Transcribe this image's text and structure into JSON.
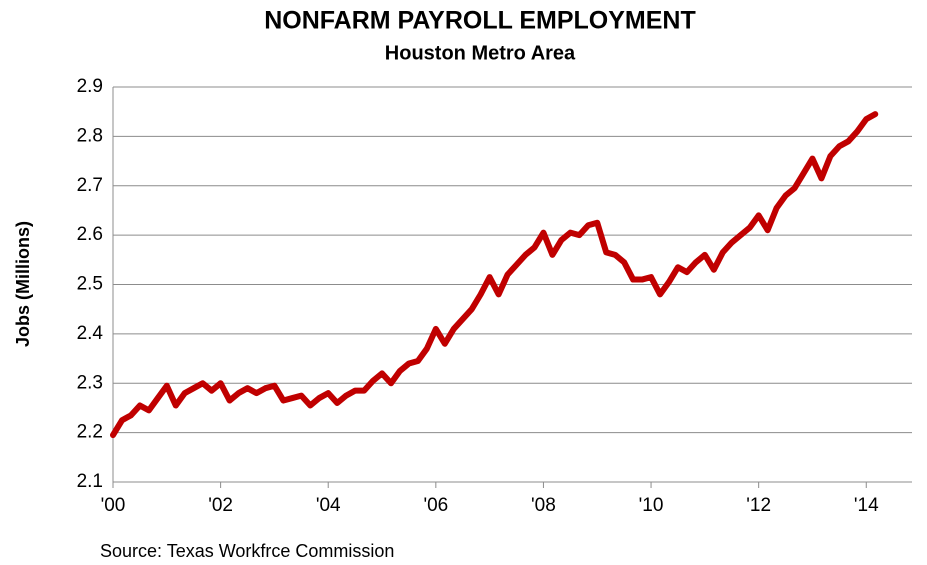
{
  "chart_data": {
    "type": "line",
    "title": "NONFARM PAYROLL EMPLOYMENT",
    "subtitle": "Houston Metro Area",
    "y_label": "Jobs (Millions)",
    "source": "Source: Texas Workfrce Commission",
    "color": "#c00000",
    "grid": true,
    "xlim": [
      2000,
      2014.85
    ],
    "xticks": [
      {
        "value": 2000,
        "label": "'00"
      },
      {
        "value": 2002,
        "label": "'02"
      },
      {
        "value": 2004,
        "label": "'04"
      },
      {
        "value": 2006,
        "label": "'06"
      },
      {
        "value": 2008,
        "label": "'08"
      },
      {
        "value": 2010,
        "label": "'10"
      },
      {
        "value": 2012,
        "label": "'12"
      },
      {
        "value": 2014,
        "label": "'14"
      }
    ],
    "ylim": [
      2.1,
      2.9
    ],
    "yticks": [
      2.1,
      2.2,
      2.3,
      2.4,
      2.5,
      2.6,
      2.7,
      2.8,
      2.9
    ],
    "x": [
      2000,
      2000.167,
      2000.333,
      2000.5,
      2000.667,
      2000.833,
      2001,
      2001.167,
      2001.333,
      2001.5,
      2001.667,
      2001.833,
      2002,
      2002.167,
      2002.333,
      2002.5,
      2002.667,
      2002.833,
      2003,
      2003.167,
      2003.333,
      2003.5,
      2003.667,
      2003.833,
      2004,
      2004.167,
      2004.333,
      2004.5,
      2004.667,
      2004.833,
      2005,
      2005.167,
      2005.333,
      2005.5,
      2005.667,
      2005.833,
      2006,
      2006.167,
      2006.333,
      2006.5,
      2006.667,
      2006.833,
      2007,
      2007.167,
      2007.333,
      2007.5,
      2007.667,
      2007.833,
      2008,
      2008.167,
      2008.333,
      2008.5,
      2008.667,
      2008.833,
      2009,
      2009.167,
      2009.333,
      2009.5,
      2009.667,
      2009.833,
      2010,
      2010.167,
      2010.333,
      2010.5,
      2010.667,
      2010.833,
      2011,
      2011.167,
      2011.333,
      2011.5,
      2011.667,
      2011.833,
      2012,
      2012.167,
      2012.333,
      2012.5,
      2012.667,
      2012.833,
      2013,
      2013.167,
      2013.333,
      2013.5,
      2013.667,
      2013.833,
      2014,
      2014.167
    ],
    "values": [
      2.195,
      2.225,
      2.235,
      2.255,
      2.245,
      2.27,
      2.295,
      2.255,
      2.28,
      2.29,
      2.3,
      2.285,
      2.3,
      2.265,
      2.28,
      2.29,
      2.28,
      2.29,
      2.295,
      2.265,
      2.27,
      2.275,
      2.255,
      2.27,
      2.28,
      2.26,
      2.275,
      2.285,
      2.285,
      2.305,
      2.32,
      2.3,
      2.325,
      2.34,
      2.345,
      2.37,
      2.41,
      2.38,
      2.41,
      2.43,
      2.45,
      2.48,
      2.515,
      2.48,
      2.52,
      2.54,
      2.56,
      2.575,
      2.605,
      2.56,
      2.59,
      2.605,
      2.6,
      2.62,
      2.625,
      2.565,
      2.56,
      2.545,
      2.51,
      2.51,
      2.515,
      2.48,
      2.505,
      2.535,
      2.525,
      2.545,
      2.56,
      2.53,
      2.565,
      2.585,
      2.6,
      2.615,
      2.64,
      2.61,
      2.655,
      2.68,
      2.695,
      2.725,
      2.755,
      2.715,
      2.76,
      2.78,
      2.79,
      2.81,
      2.835,
      2.845
    ]
  }
}
